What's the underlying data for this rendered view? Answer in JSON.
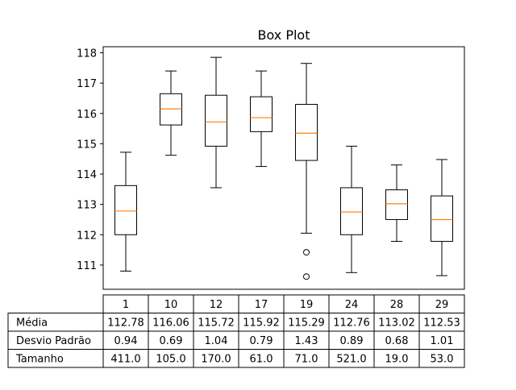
{
  "chart_data": {
    "type": "box",
    "title": "Box Plot",
    "xlabel": "",
    "ylabel": "",
    "ylim": [
      110.2,
      118.2
    ],
    "yticks": [
      111,
      112,
      113,
      114,
      115,
      116,
      117,
      118
    ],
    "categories": [
      "1",
      "10",
      "12",
      "17",
      "19",
      "24",
      "28",
      "29"
    ],
    "boxes": [
      {
        "label": "1",
        "whisker_low": 110.8,
        "q1": 112.0,
        "median": 112.78,
        "q3": 113.62,
        "whisker_high": 114.72,
        "outliers": []
      },
      {
        "label": "10",
        "whisker_low": 114.62,
        "q1": 115.62,
        "median": 116.15,
        "q3": 116.65,
        "whisker_high": 117.4,
        "outliers": []
      },
      {
        "label": "12",
        "whisker_low": 113.55,
        "q1": 114.92,
        "median": 115.72,
        "q3": 116.6,
        "whisker_high": 117.85,
        "outliers": []
      },
      {
        "label": "17",
        "whisker_low": 114.25,
        "q1": 115.4,
        "median": 115.86,
        "q3": 116.55,
        "whisker_high": 117.4,
        "outliers": []
      },
      {
        "label": "19",
        "whisker_low": 112.05,
        "q1": 114.45,
        "median": 115.35,
        "q3": 116.3,
        "whisker_high": 117.65,
        "outliers": [
          111.42,
          110.62
        ]
      },
      {
        "label": "24",
        "whisker_low": 110.75,
        "q1": 112.0,
        "median": 112.75,
        "q3": 113.55,
        "whisker_high": 114.92,
        "outliers": []
      },
      {
        "label": "28",
        "whisker_low": 111.78,
        "q1": 112.5,
        "median": 113.02,
        "q3": 113.48,
        "whisker_high": 114.3,
        "outliers": []
      },
      {
        "label": "29",
        "whisker_low": 110.65,
        "q1": 111.78,
        "median": 112.5,
        "q3": 113.28,
        "whisker_high": 114.48,
        "outliers": []
      }
    ],
    "table": {
      "row_labels": [
        "Média",
        "Desvio Padrão",
        "Tamanho"
      ],
      "rows": [
        [
          "112.78",
          "116.06",
          "115.72",
          "115.92",
          "115.29",
          "112.76",
          "113.02",
          "112.53"
        ],
        [
          "0.94",
          "0.69",
          "1.04",
          "0.79",
          "1.43",
          "0.89",
          "0.68",
          "1.01"
        ],
        [
          "411.0",
          "105.0",
          "170.0",
          "61.0",
          "71.0",
          "521.0",
          "19.0",
          "53.0"
        ]
      ]
    },
    "colors": {
      "box": "#000000",
      "median": "#ff7f0e",
      "grid": false
    }
  }
}
